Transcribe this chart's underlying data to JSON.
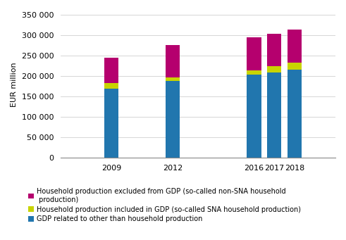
{
  "years": [
    2009,
    2012,
    2016,
    2017,
    2018
  ],
  "gdp_other": [
    170000,
    188000,
    203000,
    208000,
    215000
  ],
  "sna_household": [
    13000,
    9000,
    11000,
    16000,
    17000
  ],
  "non_sna_household": [
    62000,
    78000,
    81000,
    80000,
    82000
  ],
  "bar_width": 0.7,
  "color_gdp": "#2176AE",
  "color_sna": "#C8D400",
  "color_non_sna": "#B5006E",
  "ylabel": "EUR million",
  "ylim": [
    0,
    360000
  ],
  "yticks": [
    0,
    50000,
    100000,
    150000,
    200000,
    250000,
    300000,
    350000
  ],
  "legend_labels": [
    "Household production excluded from GDP (so-called non-SNA household\n production)",
    "Household production included in GDP (so-called SNA household production)",
    "GDP related to other than household production"
  ],
  "background_color": "#ffffff"
}
